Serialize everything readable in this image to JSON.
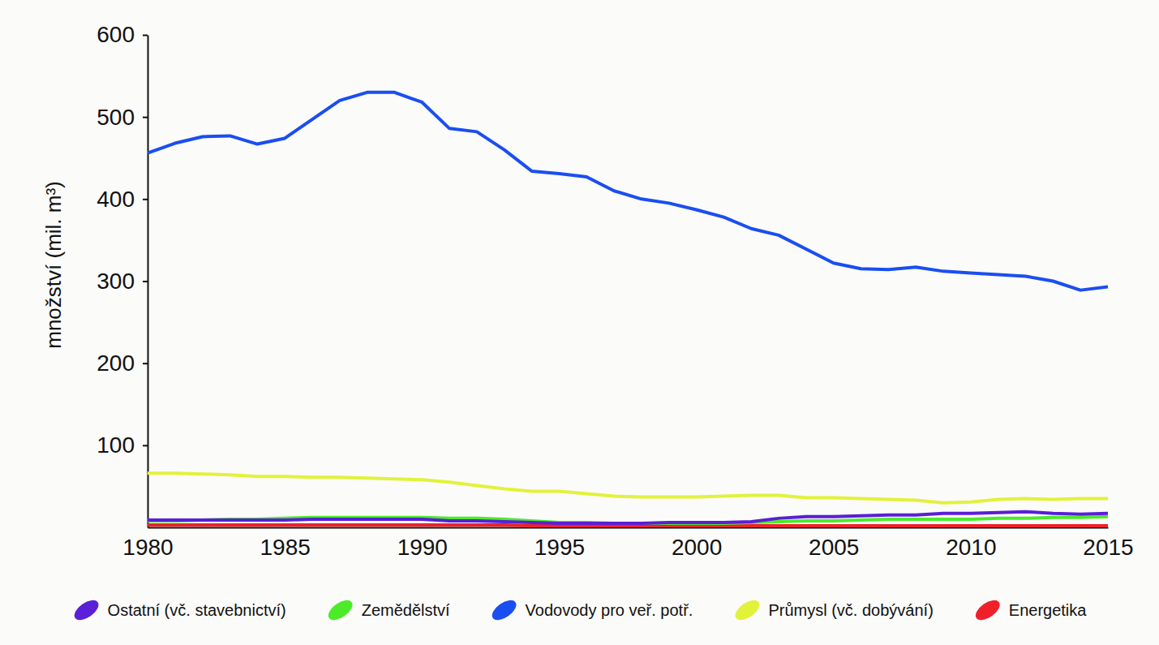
{
  "chart_data": {
    "type": "line",
    "ylabel": "množství (mil. m³)",
    "x": [
      1980,
      1981,
      1982,
      1983,
      1984,
      1985,
      1986,
      1987,
      1988,
      1989,
      1990,
      1991,
      1992,
      1993,
      1994,
      1995,
      1996,
      1997,
      1998,
      1999,
      2000,
      2001,
      2002,
      2003,
      2004,
      2005,
      2006,
      2007,
      2008,
      2009,
      2010,
      2011,
      2012,
      2013,
      2014,
      2015
    ],
    "xlim": [
      1980,
      2015
    ],
    "xticks": [
      1980,
      1985,
      1990,
      1995,
      2000,
      2005,
      2010,
      2015
    ],
    "ylim": [
      0,
      600
    ],
    "yticks": [
      100,
      200,
      300,
      400,
      500,
      600
    ],
    "grid": false,
    "legend": "bottom",
    "series": [
      {
        "name": "Ostatní (vč. stavebnictví)",
        "color": "#5a1fd6",
        "values": [
          9,
          9,
          9,
          9,
          9,
          9,
          10,
          10,
          10,
          10,
          10,
          8,
          8,
          7,
          6,
          5,
          5,
          5,
          5,
          6,
          6,
          6,
          7,
          11,
          13,
          13,
          14,
          15,
          15,
          17,
          17,
          18,
          19,
          17,
          16,
          17
        ]
      },
      {
        "name": "Zemědělství",
        "color": "#4ceb2a",
        "values": [
          8,
          8,
          9,
          10,
          10,
          11,
          12,
          12,
          12,
          12,
          12,
          11,
          11,
          10,
          8,
          6,
          6,
          5,
          5,
          5,
          5,
          5,
          6,
          7,
          8,
          8,
          9,
          10,
          10,
          10,
          10,
          11,
          11,
          12,
          12,
          13
        ]
      },
      {
        "name": "Vodovody pro veř. potř.",
        "color": "#1a4ef0",
        "values": [
          456,
          468,
          476,
          477,
          467,
          474,
          497,
          520,
          530,
          530,
          518,
          486,
          482,
          460,
          434,
          431,
          427,
          410,
          400,
          395,
          387,
          378,
          364,
          356,
          339,
          322,
          315,
          314,
          317,
          312,
          310,
          308,
          306,
          300,
          289,
          293
        ]
      },
      {
        "name": "Průmysl (vč. dobývání)",
        "color": "#e2f23a",
        "values": [
          66,
          66,
          65,
          64,
          62,
          62,
          61,
          61,
          60,
          59,
          58,
          55,
          51,
          47,
          44,
          44,
          41,
          38,
          37,
          37,
          37,
          38,
          39,
          39,
          36,
          36,
          35,
          34,
          33,
          30,
          31,
          34,
          35,
          34,
          35,
          35
        ]
      },
      {
        "name": "Energetika",
        "color": "#f0202a",
        "values": [
          3,
          3,
          3,
          3,
          3,
          3,
          3,
          3,
          3,
          3,
          3,
          3,
          3,
          3,
          2,
          2,
          2,
          2,
          2,
          2,
          2,
          2,
          2,
          2,
          2,
          2,
          2,
          2,
          2,
          2,
          2,
          2,
          2,
          2,
          2,
          2
        ]
      }
    ]
  }
}
